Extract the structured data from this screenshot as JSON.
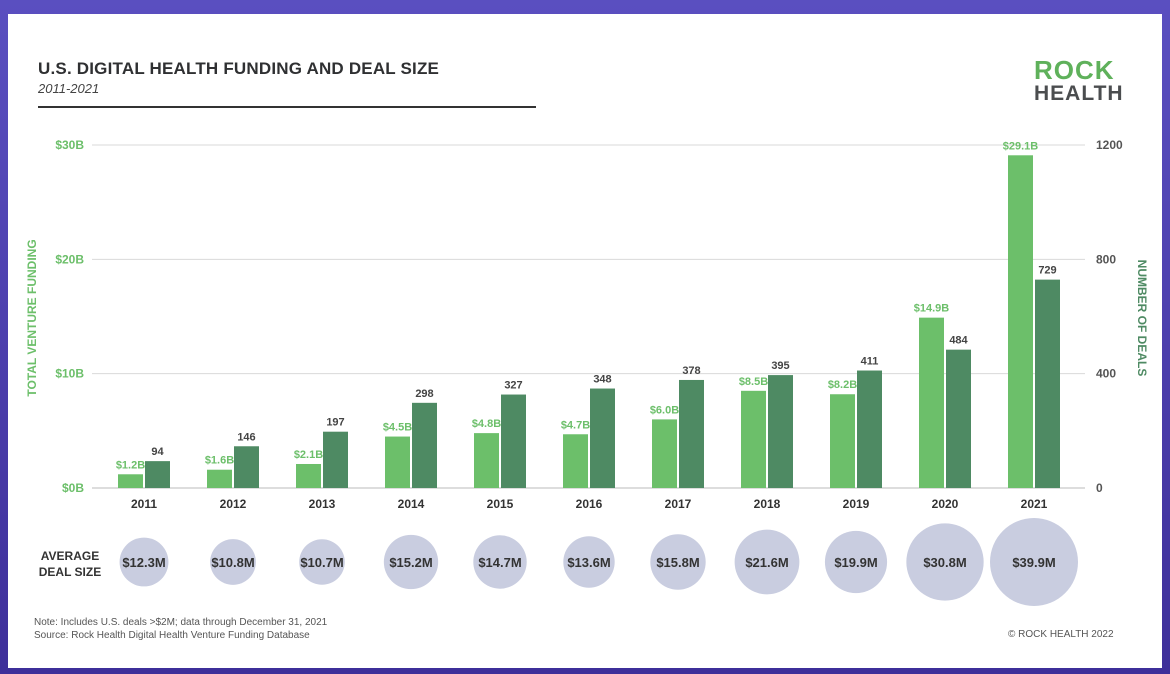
{
  "header": {
    "title": "U.S. DIGITAL HEALTH FUNDING AND DEAL SIZE",
    "subtitle": "2011-2021"
  },
  "logo": {
    "line1": "ROCK",
    "line2": "HEALTH"
  },
  "avg_label": {
    "line1": "AVERAGE",
    "line2": "DEAL SIZE"
  },
  "footer": {
    "note1": "Note: Includes U.S. deals >$2M; data through December 31, 2021",
    "note2": "Source: Rock Health Digital Health Venture Funding Database",
    "copyright": "© ROCK HEALTH 2022"
  },
  "colors": {
    "funding": "#6cbf6a",
    "deals": "#4e8a63",
    "bubble": "#c9cde0",
    "axis_green": "#6cbf6a",
    "axis_dark": "#4e8a63"
  },
  "chart_data": {
    "type": "bar",
    "categories": [
      "2011",
      "2012",
      "2013",
      "2014",
      "2015",
      "2016",
      "2017",
      "2018",
      "2019",
      "2020",
      "2021"
    ],
    "ylabel": "TOTAL VENTURE FUNDING",
    "y2label": "NUMBER OF DEALS",
    "ylim": [
      0,
      30
    ],
    "y2lim": [
      0,
      1200
    ],
    "yticks": [
      0,
      10,
      20,
      30
    ],
    "ytick_labels": [
      "$0B",
      "$10B",
      "$20B",
      "$30B"
    ],
    "y2ticks": [
      0,
      400,
      800,
      1200
    ],
    "y2tick_labels": [
      "0",
      "400",
      "800",
      "1200"
    ],
    "grid": true,
    "series": [
      {
        "axis": "left",
        "values": [
          1.2,
          1.6,
          2.1,
          4.5,
          4.8,
          4.7,
          6.0,
          8.5,
          8.2,
          14.9,
          29.1
        ],
        "labels": [
          "$1.2B",
          "$1.6B",
          "$2.1B",
          "$4.5B",
          "$4.8B",
          "$4.7B",
          "$6.0B",
          "$8.5B",
          "$8.2B",
          "$14.9B",
          "$29.1B"
        ]
      },
      {
        "axis": "right",
        "values": [
          94,
          146,
          197,
          298,
          327,
          348,
          378,
          395,
          411,
          484,
          729
        ],
        "labels": [
          "94",
          "146",
          "197",
          "298",
          "327",
          "348",
          "378",
          "395",
          "411",
          "484",
          "729"
        ]
      }
    ],
    "average_deal_size": {
      "values": [
        12.3,
        10.8,
        10.7,
        15.2,
        14.7,
        13.6,
        15.8,
        21.6,
        19.9,
        30.8,
        39.9
      ],
      "labels": [
        "$12.3M",
        "$10.8M",
        "$10.7M",
        "$15.2M",
        "$14.7M",
        "$13.6M",
        "$15.8M",
        "$21.6M",
        "$19.9M",
        "$30.8M",
        "$39.9M"
      ]
    }
  }
}
